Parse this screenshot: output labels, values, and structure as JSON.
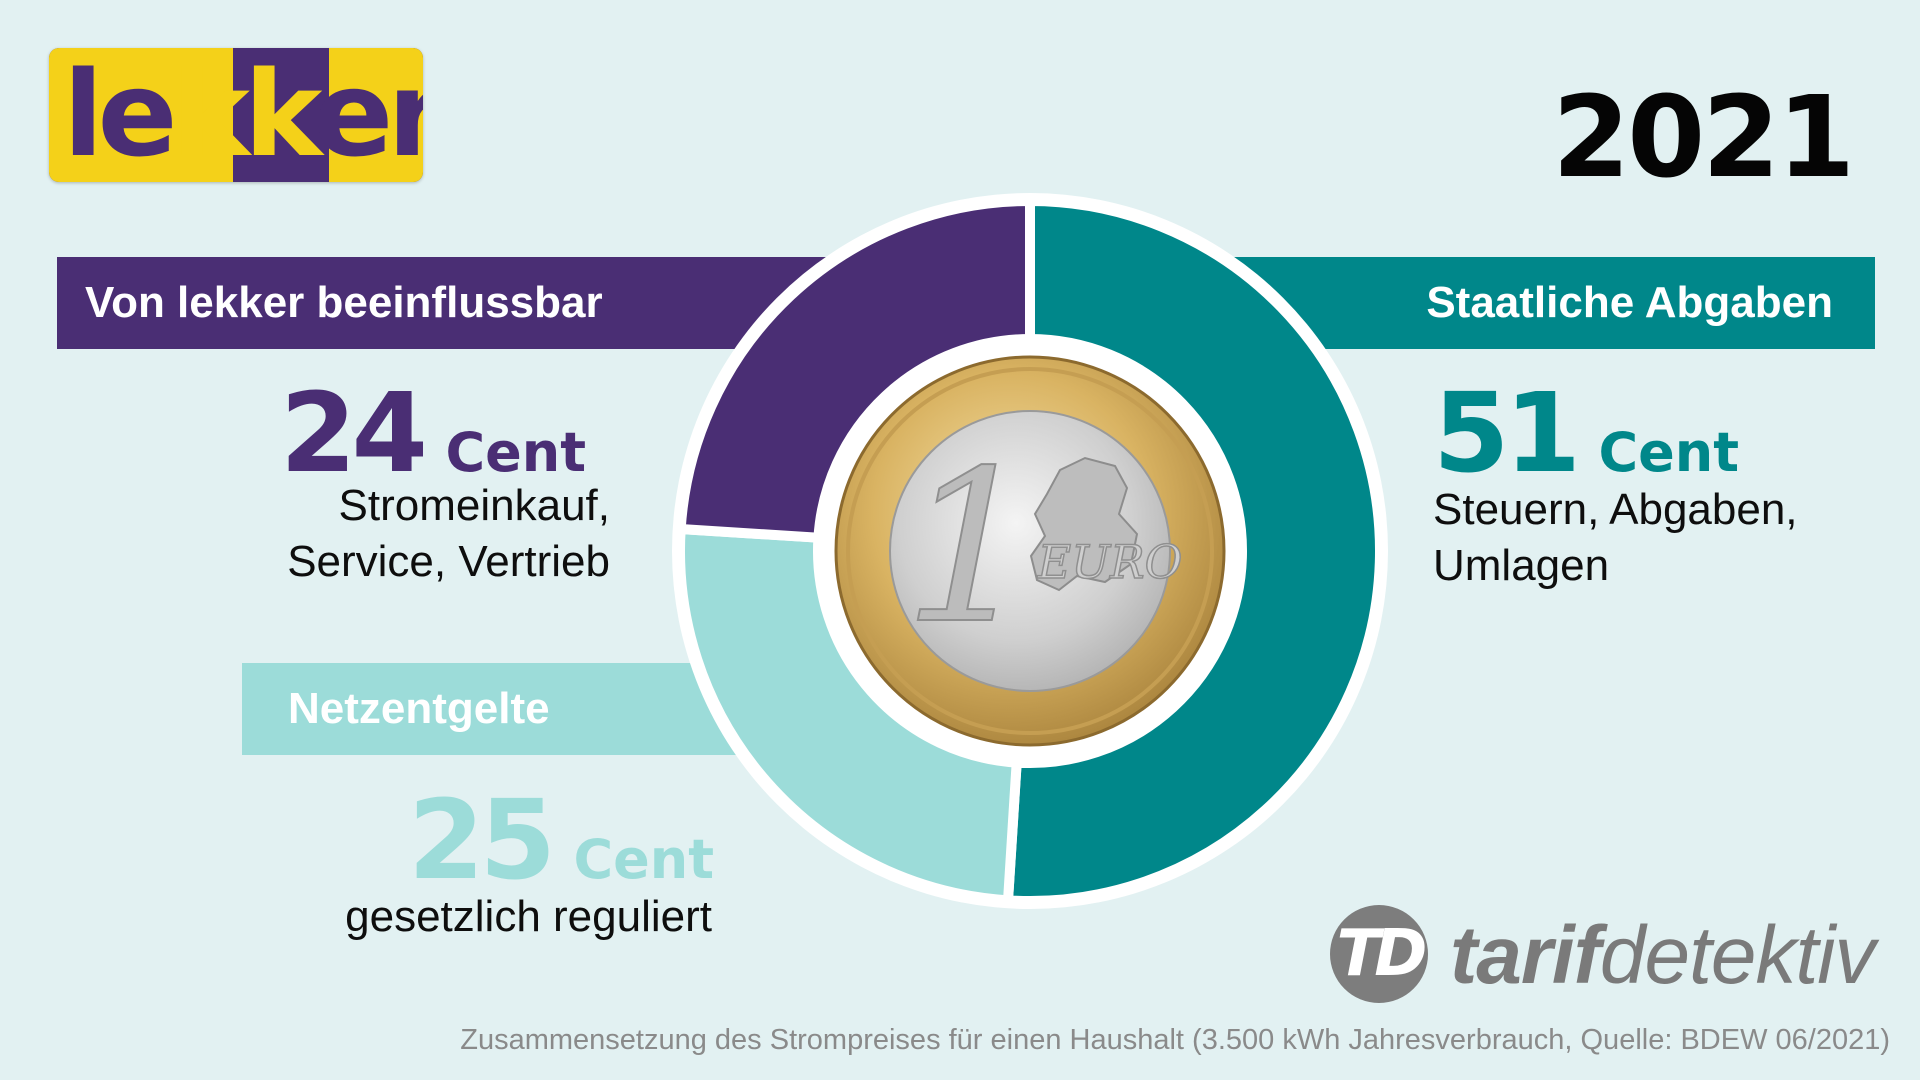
{
  "logo": {
    "part1": "le",
    "part2": "kk",
    "part3": "er"
  },
  "year": "2021",
  "colors": {
    "purple": "#4a2e74",
    "teal": "#00878a",
    "light_teal": "#9cdcd9",
    "background": "#e2f1f2"
  },
  "icons": {
    "coin": "one-euro-coin-icon",
    "brand": "tarifdetektiv-logo-icon"
  },
  "chart_data": {
    "type": "pie",
    "title": "",
    "donut": true,
    "unit": "Cent",
    "series": [
      {
        "name": "Staatliche Abgaben",
        "value": 51,
        "unit": "Cent",
        "description": [
          "Steuern, Abgaben,",
          "Umlagen"
        ],
        "color": "#00878a"
      },
      {
        "name": "Netzentgelte",
        "value": 25,
        "unit": "Cent",
        "description": [
          "gesetzlich reguliert"
        ],
        "color": "#9cdcd9"
      },
      {
        "name": "Von lekker beeinflussbar",
        "value": 24,
        "unit": "Cent",
        "description": [
          "Stromeinkauf,",
          "Service, Vertrieb"
        ],
        "color": "#4a2e74"
      }
    ]
  },
  "coin": {
    "numeral": "1",
    "label": "EURO"
  },
  "brand": {
    "mark": "TD",
    "name_bold": "tarif",
    "name_light": "detektiv"
  },
  "footnote": "Zusammensetzung des Strompreises für einen Haushalt (3.500 kWh Jahresverbrauch, Quelle: BDEW 06/2021)"
}
